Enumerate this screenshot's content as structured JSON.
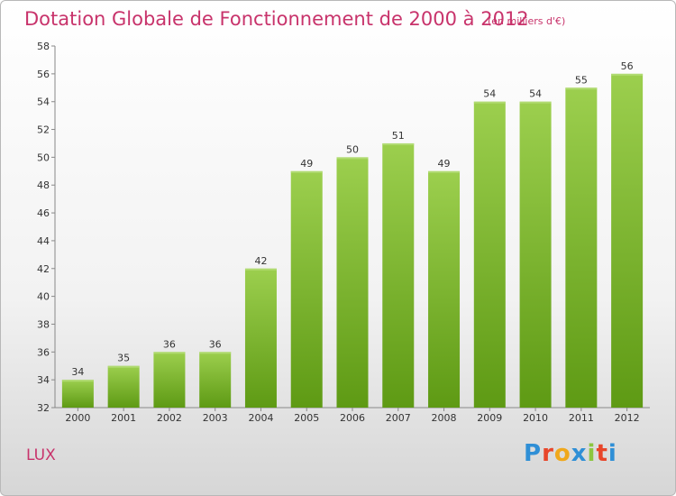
{
  "header": {
    "title": "Dotation Globale de Fonctionnement de 2000 à 2012",
    "subtitle": "(en milliers d'€)"
  },
  "footer": {
    "place": "LUX",
    "logo": "Proxiti"
  },
  "colors": {
    "accent": "#c8336b",
    "bar_top": "#9ccf4e",
    "bar_bottom": "#5e9a14"
  },
  "chart_data": {
    "type": "bar",
    "title": "Dotation Globale de Fonctionnement de 2000 à 2012",
    "subtitle": "(en milliers d'€)",
    "xlabel": "",
    "ylabel": "",
    "categories": [
      "2000",
      "2001",
      "2002",
      "2003",
      "2004",
      "2005",
      "2006",
      "2007",
      "2008",
      "2009",
      "2010",
      "2011",
      "2012"
    ],
    "values": [
      34,
      35,
      36,
      36,
      42,
      49,
      50,
      51,
      49,
      54,
      54,
      55,
      56
    ],
    "ylim": [
      32,
      58
    ],
    "yticks": [
      32,
      34,
      36,
      38,
      40,
      42,
      44,
      46,
      48,
      50,
      52,
      54,
      56,
      58
    ],
    "grid": false,
    "legend": "none",
    "data_labels": true
  }
}
